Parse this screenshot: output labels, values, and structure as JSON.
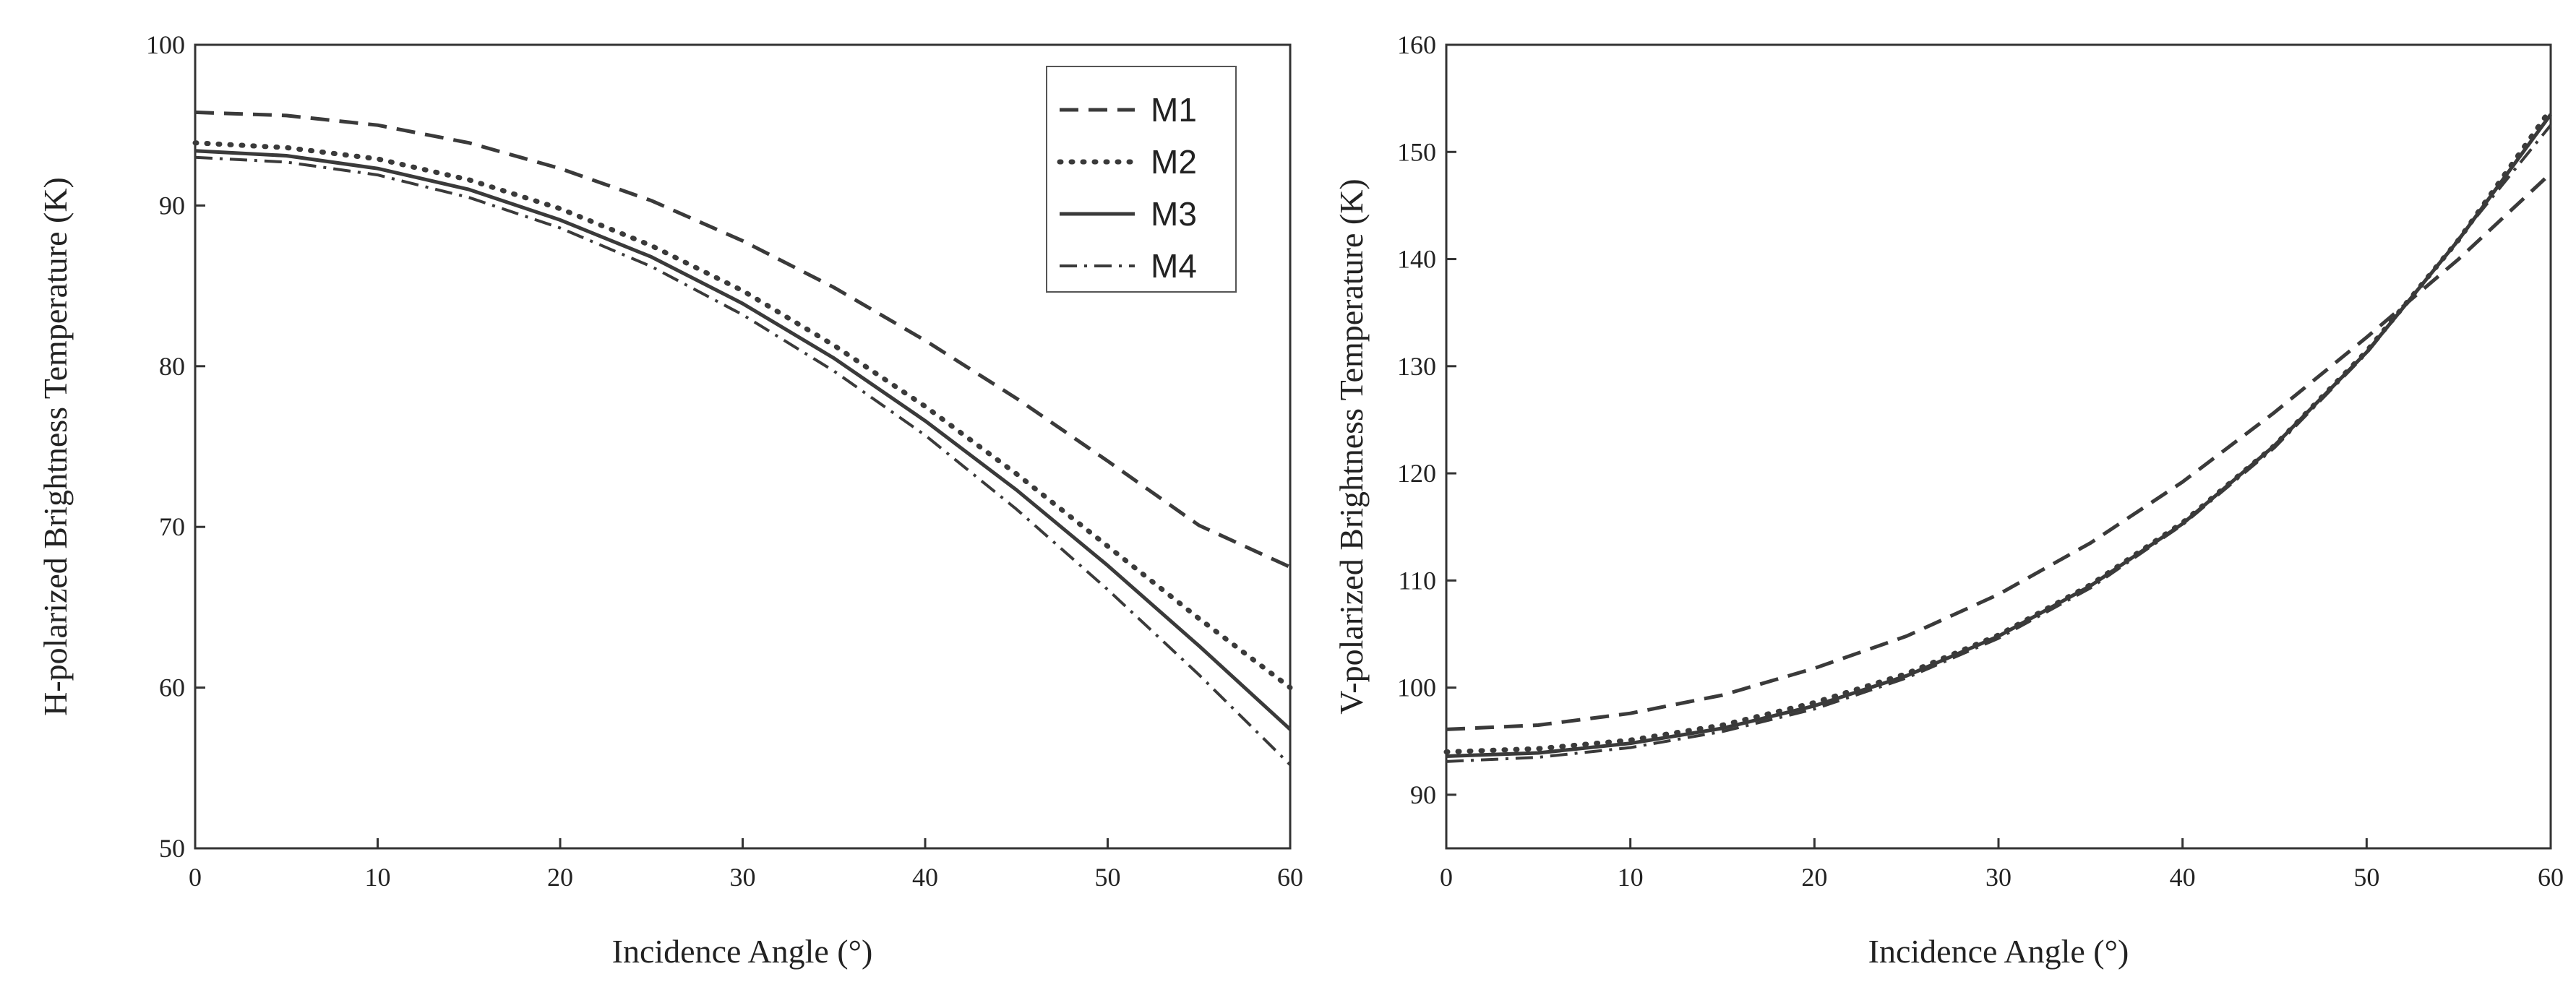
{
  "chart_data": [
    {
      "type": "line",
      "title": "",
      "xlabel": "Incidence Angle (°)",
      "ylabel": "H-polarized Brightness Temperature (K)",
      "xlim": [
        0,
        60
      ],
      "ylim": [
        50,
        100
      ],
      "xticks": [
        0,
        10,
        20,
        30,
        40,
        50,
        60
      ],
      "yticks": [
        50,
        60,
        70,
        80,
        90,
        100
      ],
      "legend_position": "top-right",
      "x": [
        0,
        5,
        10,
        15,
        20,
        25,
        30,
        35,
        40,
        45,
        50,
        55,
        60
      ],
      "series": [
        {
          "name": "M1",
          "style": "dashed",
          "values": [
            95.8,
            95.6,
            95.0,
            93.9,
            92.3,
            90.3,
            87.8,
            84.9,
            81.6,
            78.0,
            74.1,
            70.1,
            67.5
          ]
        },
        {
          "name": "M2",
          "style": "dotted",
          "values": [
            93.9,
            93.6,
            92.9,
            91.6,
            89.8,
            87.5,
            84.7,
            81.3,
            77.5,
            73.3,
            68.8,
            64.3,
            60.0
          ]
        },
        {
          "name": "M3",
          "style": "solid",
          "values": [
            93.4,
            93.1,
            92.3,
            91.0,
            89.1,
            86.8,
            83.9,
            80.5,
            76.6,
            72.3,
            67.6,
            62.6,
            57.4
          ]
        },
        {
          "name": "M4",
          "style": "dashdot",
          "values": [
            93.0,
            92.7,
            91.9,
            90.5,
            88.6,
            86.2,
            83.2,
            79.7,
            75.7,
            71.1,
            66.1,
            60.8,
            55.2
          ]
        }
      ]
    },
    {
      "type": "line",
      "title": "",
      "xlabel": "Incidence Angle (°)",
      "ylabel": "V-polarized Brightness Temperature (K)",
      "xlim": [
        0,
        60
      ],
      "ylim": [
        85,
        160
      ],
      "xticks": [
        0,
        10,
        20,
        30,
        40,
        50,
        60
      ],
      "yticks": [
        90,
        100,
        110,
        120,
        130,
        140,
        150,
        160
      ],
      "x": [
        0,
        5,
        10,
        15,
        20,
        25,
        30,
        35,
        40,
        45,
        50,
        55,
        60
      ],
      "series": [
        {
          "name": "M1",
          "style": "dashed",
          "values": [
            96.1,
            96.5,
            97.6,
            99.3,
            101.8,
            104.8,
            108.7,
            113.5,
            119.2,
            125.7,
            132.7,
            140.0,
            148.0
          ]
        },
        {
          "name": "M2",
          "style": "dotted",
          "values": [
            94.0,
            94.3,
            95.1,
            96.5,
            98.6,
            101.3,
            104.9,
            109.6,
            115.4,
            122.6,
            131.4,
            141.8,
            154.0
          ]
        },
        {
          "name": "M3",
          "style": "solid",
          "values": [
            93.6,
            93.9,
            94.8,
            96.2,
            98.3,
            101.1,
            104.8,
            109.5,
            115.3,
            122.6,
            131.3,
            141.8,
            153.5
          ]
        },
        {
          "name": "M4",
          "style": "dashdot",
          "values": [
            93.1,
            93.5,
            94.4,
            95.9,
            98.0,
            100.9,
            104.6,
            109.3,
            115.2,
            122.4,
            131.2,
            141.9,
            152.5
          ]
        }
      ]
    }
  ]
}
